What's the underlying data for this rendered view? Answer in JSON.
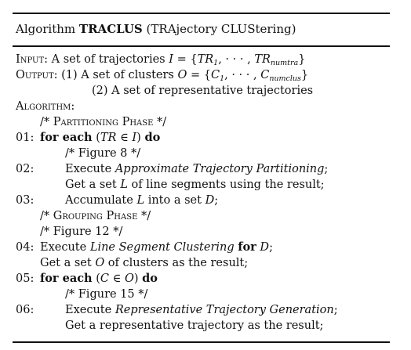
{
  "title": {
    "prefix": "Algorithm ",
    "name": "TRACLUS",
    "suffix": " (TRAjectory CLUStering)"
  },
  "lines": [
    {
      "num": "",
      "indent": 0,
      "parts": [
        {
          "t": "Input",
          "s": "sc"
        },
        {
          "t": ": A set of trajectories "
        },
        {
          "t": "I",
          "s": "math"
        },
        {
          "t": " = {",
          "s": "up"
        },
        {
          "t": "TR",
          "s": "math"
        },
        {
          "t": "1",
          "s": "sub"
        },
        {
          "t": ", · · · , ",
          "s": "up"
        },
        {
          "t": "TR",
          "s": "math"
        },
        {
          "t": "numtra",
          "s": "sub"
        },
        {
          "t": "}",
          "s": "up"
        }
      ]
    },
    {
      "num": "",
      "indent": 0,
      "parts": [
        {
          "t": "Output",
          "s": "sc"
        },
        {
          "t": ": (1) A set of clusters "
        },
        {
          "t": "O",
          "s": "math"
        },
        {
          "t": " = {",
          "s": "up"
        },
        {
          "t": "C",
          "s": "math"
        },
        {
          "t": "1",
          "s": "sub"
        },
        {
          "t": ", · · · , ",
          "s": "up"
        },
        {
          "t": "C",
          "s": "math"
        },
        {
          "t": "numclus",
          "s": "sub"
        },
        {
          "t": "}",
          "s": "up"
        }
      ]
    },
    {
      "num": "",
      "indent": 97,
      "parts": [
        {
          "t": "(2) A set of representative trajectories"
        }
      ]
    },
    {
      "num": "",
      "indent": 0,
      "parts": [
        {
          "t": "Algorithm",
          "s": "sc"
        },
        {
          "t": ":"
        }
      ]
    },
    {
      "num": "",
      "indent": 31,
      "parts": [
        {
          "t": "/* "
        },
        {
          "t": "Partitioning Phase",
          "s": "sc"
        },
        {
          "t": " */"
        }
      ]
    },
    {
      "num": "01:",
      "indent": 31,
      "parts": [
        {
          "t": "for each",
          "s": "kw"
        },
        {
          "t": " ("
        },
        {
          "t": "TR",
          "s": "math"
        },
        {
          "t": " ∈ ",
          "s": "up"
        },
        {
          "t": "I",
          "s": "math"
        },
        {
          "t": ") "
        },
        {
          "t": "do",
          "s": "kw"
        }
      ]
    },
    {
      "num": "",
      "indent": 63,
      "parts": [
        {
          "t": "/* Figure 8 */"
        }
      ]
    },
    {
      "num": "02:",
      "indent": 63,
      "parts": [
        {
          "t": "Execute "
        },
        {
          "t": "Approximate Trajectory Partitioning",
          "s": "it"
        },
        {
          "t": ";"
        }
      ]
    },
    {
      "num": "",
      "indent": 63,
      "parts": [
        {
          "t": "Get a set "
        },
        {
          "t": "L",
          "s": "math"
        },
        {
          "t": " of line segments using the result;"
        }
      ]
    },
    {
      "num": "03:",
      "indent": 63,
      "parts": [
        {
          "t": "Accumulate "
        },
        {
          "t": "L",
          "s": "math"
        },
        {
          "t": " into a set "
        },
        {
          "t": "D",
          "s": "math"
        },
        {
          "t": ";"
        }
      ]
    },
    {
      "num": "",
      "indent": 31,
      "parts": [
        {
          "t": "/* "
        },
        {
          "t": "Grouping Phase",
          "s": "sc"
        },
        {
          "t": " */"
        }
      ]
    },
    {
      "num": "",
      "indent": 31,
      "parts": [
        {
          "t": "/* Figure 12 */"
        }
      ]
    },
    {
      "num": "04:",
      "indent": 31,
      "parts": [
        {
          "t": "Execute "
        },
        {
          "t": "Line Segment Clustering",
          "s": "it"
        },
        {
          "t": " "
        },
        {
          "t": "for",
          "s": "kw"
        },
        {
          "t": " "
        },
        {
          "t": "D",
          "s": "math"
        },
        {
          "t": ";"
        }
      ]
    },
    {
      "num": "",
      "indent": 31,
      "parts": [
        {
          "t": "Get a set "
        },
        {
          "t": "O",
          "s": "math"
        },
        {
          "t": " of clusters as the result;"
        }
      ]
    },
    {
      "num": "05:",
      "indent": 31,
      "parts": [
        {
          "t": "for each",
          "s": "kw"
        },
        {
          "t": " ("
        },
        {
          "t": "C",
          "s": "math"
        },
        {
          "t": " ∈ ",
          "s": "up"
        },
        {
          "t": "O",
          "s": "math"
        },
        {
          "t": ") "
        },
        {
          "t": "do",
          "s": "kw"
        }
      ]
    },
    {
      "num": "",
      "indent": 63,
      "parts": [
        {
          "t": "/* Figure 15 */"
        }
      ]
    },
    {
      "num": "06:",
      "indent": 63,
      "parts": [
        {
          "t": "Execute "
        },
        {
          "t": "Representative Trajectory Generation",
          "s": "it"
        },
        {
          "t": ";"
        }
      ]
    },
    {
      "num": "",
      "indent": 63,
      "parts": [
        {
          "t": "Get a representative trajectory as the result;"
        }
      ]
    }
  ]
}
